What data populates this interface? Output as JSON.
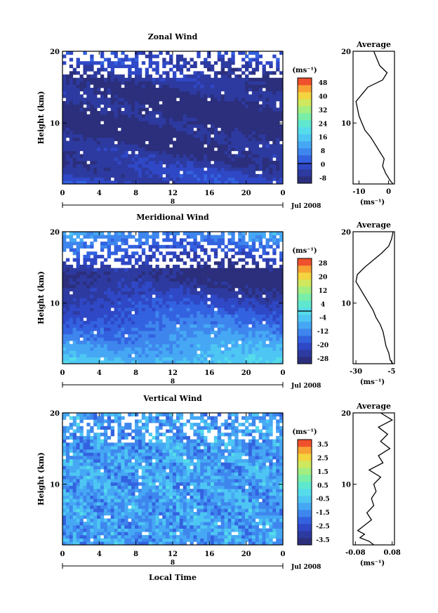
{
  "chart_data": [
    {
      "type": "heatmap",
      "title": "Zonal Wind",
      "ylabel": "Height (km)",
      "xlabel": "",
      "x_ticks": [
        "0",
        "4",
        "8",
        "12",
        "16",
        "20",
        "0"
      ],
      "y_ticks": [
        "10",
        "20"
      ],
      "xlim": [
        0,
        24
      ],
      "ylim": [
        1.5,
        20
      ],
      "date_marker": "8",
      "date_label": "Jul 2008",
      "colorbar": {
        "unit": "(ms⁻¹)",
        "ticks": [
          "48",
          "40",
          "32",
          "24",
          "16",
          "8",
          "0",
          "-8"
        ],
        "range": [
          -12,
          52
        ],
        "zero_line": 0
      },
      "fill": {
        "mode": "zonal",
        "low": -12,
        "high": 52
      },
      "profile": {
        "title": "Average",
        "xlabel": "(ms⁻¹)",
        "x_ticks": [
          "-10",
          "0"
        ],
        "xlim": [
          -12,
          2
        ],
        "y_ticks": [
          "10",
          "20"
        ],
        "heights": [
          1.5,
          2,
          3,
          4,
          5,
          6,
          7,
          8,
          9,
          10,
          11,
          12,
          13,
          14,
          15,
          16,
          17,
          18,
          19,
          20
        ],
        "values": [
          1.5,
          0.5,
          -1,
          -2,
          -1.5,
          -3,
          -4.5,
          -6,
          -8,
          -9,
          -10,
          -10.5,
          -11,
          -9,
          -7,
          -2,
          -0.5,
          -3,
          -4,
          -5
        ]
      }
    },
    {
      "type": "heatmap",
      "title": "Meridional Wind",
      "ylabel": "Height (km)",
      "xlabel": "",
      "x_ticks": [
        "0",
        "4",
        "8",
        "12",
        "16",
        "20",
        "0"
      ],
      "y_ticks": [
        "10",
        "20"
      ],
      "xlim": [
        0,
        24
      ],
      "ylim": [
        1.5,
        20
      ],
      "date_marker": "8",
      "date_label": "Jul 2008",
      "colorbar": {
        "unit": "(ms⁻¹)",
        "ticks": [
          "28",
          "20",
          "12",
          "4",
          "-4",
          "-12",
          "-20",
          "-28"
        ],
        "range": [
          -32,
          32
        ],
        "zero_line": 0
      },
      "fill": {
        "mode": "meridional",
        "low": -32,
        "high": 32
      },
      "profile": {
        "title": "Average",
        "xlabel": "(ms⁻¹)",
        "x_ticks": [
          "-30",
          "-5"
        ],
        "xlim": [
          -32,
          -3
        ],
        "y_ticks": [
          "10",
          "20"
        ],
        "heights": [
          1.5,
          2,
          3,
          4,
          5,
          6,
          7,
          8,
          9,
          10,
          11,
          12,
          13,
          14,
          15,
          16,
          17,
          18,
          19,
          20
        ],
        "values": [
          -4,
          -6,
          -7,
          -9,
          -10,
          -11,
          -13,
          -16,
          -18,
          -21,
          -24,
          -27,
          -30,
          -29,
          -24,
          -18,
          -12,
          -7,
          -5,
          -4
        ]
      }
    },
    {
      "type": "heatmap",
      "title": "Vertical Wind",
      "ylabel": "Height (km)",
      "xlabel": "Local Time",
      "x_ticks": [
        "0",
        "4",
        "8",
        "12",
        "16",
        "20",
        "0"
      ],
      "y_ticks": [
        "10",
        "20"
      ],
      "xlim": [
        0,
        24
      ],
      "ylim": [
        1.5,
        20
      ],
      "date_marker": "8",
      "date_label": "Jul 2008",
      "colorbar": {
        "unit": "(ms⁻¹)",
        "ticks": [
          "3.5",
          "2.5",
          "1.5",
          "0.5",
          "-0.5",
          "-1.5",
          "-2.5",
          "-3.5"
        ],
        "range": [
          -4,
          4
        ],
        "zero_line": null
      },
      "fill": {
        "mode": "vertical",
        "low": -4,
        "high": 4
      },
      "profile": {
        "title": "Average",
        "xlabel": "(ms⁻¹)",
        "x_ticks": [
          "-0.08",
          "0.08"
        ],
        "xlim": [
          -0.09,
          0.09
        ],
        "y_ticks": [
          "10",
          "20"
        ],
        "heights": [
          1.5,
          2,
          2.5,
          3,
          3.5,
          4,
          5,
          6,
          7,
          8,
          9,
          10,
          11,
          12,
          13,
          14,
          15,
          16,
          17,
          18,
          19,
          20
        ],
        "values": [
          0.0,
          -0.02,
          -0.06,
          -0.04,
          -0.07,
          -0.05,
          -0.01,
          -0.03,
          0.0,
          -0.01,
          0.01,
          0.0,
          0.03,
          -0.02,
          0.04,
          0.02,
          0.07,
          0.03,
          0.06,
          0.02,
          0.08,
          0.03
        ]
      }
    }
  ]
}
